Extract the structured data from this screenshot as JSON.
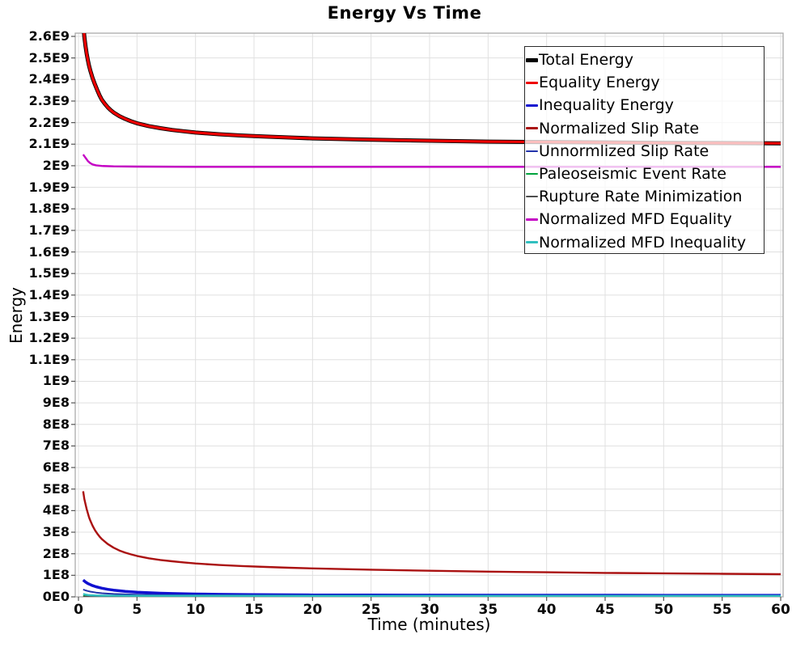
{
  "chart_data": {
    "type": "line",
    "title": "Energy Vs Time",
    "xlabel": "Time (minutes)",
    "ylabel": "Energy",
    "xlim": [
      0,
      60
    ],
    "ylim": [
      0,
      2600000000.0
    ],
    "grid": true,
    "legend_position": "top-right",
    "x_ticks": [
      0,
      5,
      10,
      15,
      20,
      25,
      30,
      35,
      40,
      45,
      50,
      55,
      60
    ],
    "y_ticks": [
      {
        "v": 2600000000.0,
        "label": "2.6E9"
      },
      {
        "v": 2500000000.0,
        "label": "2.5E9"
      },
      {
        "v": 2400000000.0,
        "label": "2.4E9"
      },
      {
        "v": 2300000000.0,
        "label": "2.3E9"
      },
      {
        "v": 2200000000.0,
        "label": "2.2E9"
      },
      {
        "v": 2100000000.0,
        "label": "2.1E9"
      },
      {
        "v": 2000000000.0,
        "label": "2E9"
      },
      {
        "v": 1900000000.0,
        "label": "1.9E9"
      },
      {
        "v": 1800000000.0,
        "label": "1.8E9"
      },
      {
        "v": 1700000000.0,
        "label": "1.7E9"
      },
      {
        "v": 1600000000.0,
        "label": "1.6E9"
      },
      {
        "v": 1500000000.0,
        "label": "1.5E9"
      },
      {
        "v": 1400000000.0,
        "label": "1.4E9"
      },
      {
        "v": 1300000000.0,
        "label": "1.3E9"
      },
      {
        "v": 1200000000.0,
        "label": "1.2E9"
      },
      {
        "v": 1100000000.0,
        "label": "1.1E9"
      },
      {
        "v": 1000000000.0,
        "label": "1E9"
      },
      {
        "v": 900000000.0,
        "label": "9E8"
      },
      {
        "v": 800000000.0,
        "label": "8E8"
      },
      {
        "v": 700000000.0,
        "label": "7E8"
      },
      {
        "v": 600000000.0,
        "label": "6E8"
      },
      {
        "v": 500000000.0,
        "label": "5E8"
      },
      {
        "v": 400000000.0,
        "label": "4E8"
      },
      {
        "v": 300000000.0,
        "label": "3E8"
      },
      {
        "v": 200000000.0,
        "label": "2E8"
      },
      {
        "v": 100000000.0,
        "label": "1E8"
      },
      {
        "v": 0,
        "label": "0E0"
      }
    ],
    "colors": {
      "grid": "#E0E0E0",
      "plot_border": "#ABABAB",
      "tick": "#555555",
      "legend_border": "#2A2A2A"
    },
    "series": [
      {
        "name": "Total Energy",
        "color": "#000000",
        "width": 5,
        "points": [
          [
            0.4,
            2670000000.0
          ],
          [
            0.5,
            2600000000.0
          ],
          [
            0.6,
            2555000000.0
          ],
          [
            0.7,
            2520000000.0
          ],
          [
            0.8,
            2490000000.0
          ],
          [
            0.9,
            2465000000.0
          ],
          [
            1.0,
            2443000000.0
          ],
          [
            1.2,
            2407000000.0
          ],
          [
            1.4,
            2378000000.0
          ],
          [
            1.6,
            2352000000.0
          ],
          [
            1.8,
            2327000000.0
          ],
          [
            2.0,
            2306000000.0
          ],
          [
            2.25,
            2287000000.0
          ],
          [
            2.5,
            2271000000.0
          ],
          [
            2.75,
            2258000000.0
          ],
          [
            3.0,
            2247000000.0
          ],
          [
            3.5,
            2230000000.0
          ],
          [
            4.0,
            2217000000.0
          ],
          [
            4.5,
            2206000000.0
          ],
          [
            5.0,
            2197000000.0
          ],
          [
            6,
            2184000000.0
          ],
          [
            7,
            2174000000.0
          ],
          [
            8,
            2166000000.0
          ],
          [
            9,
            2160000000.0
          ],
          [
            10,
            2154000000.0
          ],
          [
            12,
            2146000000.0
          ],
          [
            14,
            2140000000.0
          ],
          [
            16,
            2135000000.0
          ],
          [
            18,
            2131000000.0
          ],
          [
            20,
            2127000000.0
          ],
          [
            25,
            2121000000.0
          ],
          [
            30,
            2116000000.0
          ],
          [
            35,
            2112000000.0
          ],
          [
            40,
            2110000000.0
          ],
          [
            45,
            2108000000.0
          ],
          [
            50,
            2106000000.0
          ],
          [
            55,
            2105000000.0
          ],
          [
            60,
            2104000000.0
          ]
        ]
      },
      {
        "name": "Equality Energy",
        "color": "#EE0000",
        "width": 3.2,
        "points": [
          [
            0.4,
            2670000000.0
          ],
          [
            0.5,
            2600000000.0
          ],
          [
            0.6,
            2555000000.0
          ],
          [
            0.7,
            2520000000.0
          ],
          [
            0.8,
            2490000000.0
          ],
          [
            0.9,
            2465000000.0
          ],
          [
            1.0,
            2443000000.0
          ],
          [
            1.2,
            2407000000.0
          ],
          [
            1.4,
            2378000000.0
          ],
          [
            1.6,
            2352000000.0
          ],
          [
            1.8,
            2327000000.0
          ],
          [
            2.0,
            2306000000.0
          ],
          [
            2.25,
            2287000000.0
          ],
          [
            2.5,
            2271000000.0
          ],
          [
            2.75,
            2258000000.0
          ],
          [
            3.0,
            2247000000.0
          ],
          [
            3.5,
            2230000000.0
          ],
          [
            4.0,
            2217000000.0
          ],
          [
            4.5,
            2206000000.0
          ],
          [
            5.0,
            2197000000.0
          ],
          [
            6,
            2184000000.0
          ],
          [
            7,
            2174000000.0
          ],
          [
            8,
            2166000000.0
          ],
          [
            9,
            2160000000.0
          ],
          [
            10,
            2154000000.0
          ],
          [
            12,
            2146000000.0
          ],
          [
            14,
            2140000000.0
          ],
          [
            16,
            2135000000.0
          ],
          [
            18,
            2131000000.0
          ],
          [
            20,
            2127000000.0
          ],
          [
            25,
            2121000000.0
          ],
          [
            30,
            2116000000.0
          ],
          [
            35,
            2112000000.0
          ],
          [
            40,
            2110000000.0
          ],
          [
            45,
            2108000000.0
          ],
          [
            50,
            2106000000.0
          ],
          [
            55,
            2105000000.0
          ],
          [
            60,
            2104000000.0
          ]
        ]
      },
      {
        "name": "Inequality Energy",
        "color": "#1010D0",
        "width": 3.5,
        "points": [
          [
            0.4,
            78000000.0
          ],
          [
            0.6,
            69000000.0
          ],
          [
            0.8,
            62000000.0
          ],
          [
            1.0,
            57000000.0
          ],
          [
            1.2,
            52000000.0
          ],
          [
            1.5,
            47000000.0
          ],
          [
            2,
            40000000.0
          ],
          [
            2.5,
            35000000.0
          ],
          [
            3,
            31000000.0
          ],
          [
            4,
            25000000.0
          ],
          [
            5,
            21500000.0
          ],
          [
            6,
            19000000.0
          ],
          [
            7,
            17000000.0
          ],
          [
            8,
            15500000.0
          ],
          [
            10,
            13000000.0
          ],
          [
            12,
            11500000.0
          ],
          [
            15,
            10000000.0
          ],
          [
            20,
            8800000.0
          ],
          [
            25,
            8200000.0
          ],
          [
            30,
            7800000.0
          ],
          [
            40,
            7400000.0
          ],
          [
            50,
            7200000.0
          ],
          [
            60,
            7000000.0
          ]
        ]
      },
      {
        "name": "Normalized Slip Rate",
        "color": "#AA1111",
        "width": 2.4,
        "points": [
          [
            0.4,
            490000000.0
          ],
          [
            0.5,
            455000000.0
          ],
          [
            0.6,
            430000000.0
          ],
          [
            0.7,
            408000000.0
          ],
          [
            0.8,
            388000000.0
          ],
          [
            0.9,
            370000000.0
          ],
          [
            1.0,
            355000000.0
          ],
          [
            1.2,
            330000000.0
          ],
          [
            1.4,
            310000000.0
          ],
          [
            1.6,
            294000000.0
          ],
          [
            1.8,
            280000000.0
          ],
          [
            2.0,
            268000000.0
          ],
          [
            2.5,
            245000000.0
          ],
          [
            3.0,
            228000000.0
          ],
          [
            3.5,
            215000000.0
          ],
          [
            4.0,
            205000000.0
          ],
          [
            4.5,
            197000000.0
          ],
          [
            5.0,
            190000000.0
          ],
          [
            6,
            179000000.0
          ],
          [
            7,
            171000000.0
          ],
          [
            8,
            165000000.0
          ],
          [
            9,
            160000000.0
          ],
          [
            10,
            155000000.0
          ],
          [
            12,
            148000000.0
          ],
          [
            14,
            143000000.0
          ],
          [
            16,
            139000000.0
          ],
          [
            18,
            135000000.0
          ],
          [
            20,
            132000000.0
          ],
          [
            25,
            126000000.0
          ],
          [
            30,
            121000000.0
          ],
          [
            35,
            117000000.0
          ],
          [
            40,
            114000000.0
          ],
          [
            45,
            111000000.0
          ],
          [
            50,
            109000000.0
          ],
          [
            55,
            107000000.0
          ],
          [
            60,
            105000000.0
          ]
        ]
      },
      {
        "name": "Unnormlized Slip Rate",
        "color": "#2233AA",
        "width": 2,
        "points": [
          [
            0.4,
            34000000.0
          ],
          [
            0.6,
            30000000.0
          ],
          [
            0.8,
            27000000.0
          ],
          [
            1,
            24500000.0
          ],
          [
            1.5,
            20000000.0
          ],
          [
            2,
            17000000.0
          ],
          [
            3,
            13500000.0
          ],
          [
            4,
            11500000.0
          ],
          [
            5,
            10000000.0
          ],
          [
            7,
            8500000.0
          ],
          [
            10,
            7400000.0
          ],
          [
            15,
            6600000.0
          ],
          [
            20,
            6200000.0
          ],
          [
            30,
            5800000.0
          ],
          [
            40,
            5600000.0
          ],
          [
            50,
            5500000.0
          ],
          [
            60,
            5400000.0
          ]
        ]
      },
      {
        "name": "Paleoseismic Event Rate",
        "color": "#00A33C",
        "width": 2.4,
        "points": [
          [
            0.4,
            3200000.0
          ],
          [
            1,
            3000000.0
          ],
          [
            2,
            2800000.0
          ],
          [
            5,
            2700000.0
          ],
          [
            10,
            2600000.0
          ],
          [
            20,
            2500000.0
          ],
          [
            40,
            2500000.0
          ],
          [
            60,
            2500000.0
          ]
        ]
      },
      {
        "name": "Rupture Rate Minimization",
        "color": "#4D4D4D",
        "width": 2,
        "points": [
          [
            0.4,
            900000.0
          ],
          [
            5,
            800000.0
          ],
          [
            20,
            700000.0
          ],
          [
            60,
            700000.0
          ]
        ]
      },
      {
        "name": "Normalized MFD Equality",
        "color": "#C400C4",
        "width": 2.4,
        "points": [
          [
            0.4,
            2052000000.0
          ],
          [
            0.6,
            2037000000.0
          ],
          [
            0.8,
            2022000000.0
          ],
          [
            1.0,
            2012000000.0
          ],
          [
            1.2,
            2006000000.0
          ],
          [
            1.5,
            2002000000.0
          ],
          [
            2,
            1999000000.0
          ],
          [
            3,
            1997000000.0
          ],
          [
            5,
            1996000000.0
          ],
          [
            10,
            1995000000.0
          ],
          [
            20,
            1995000000.0
          ],
          [
            30,
            1995000000.0
          ],
          [
            40,
            1995000000.0
          ],
          [
            50,
            1995000000.0
          ],
          [
            60,
            1995000000.0
          ]
        ]
      },
      {
        "name": "Normalized MFD Inequality",
        "color": "#30BFBF",
        "width": 2.4,
        "points": [
          [
            0.4,
            13500000.0
          ],
          [
            0.6,
            10500000.0
          ],
          [
            0.8,
            8500000.0
          ],
          [
            1,
            7500000.0
          ],
          [
            1.5,
            6300000.0
          ],
          [
            2,
            5700000.0
          ],
          [
            3,
            5200000.0
          ],
          [
            5,
            4900000.0
          ],
          [
            10,
            4700000.0
          ],
          [
            20,
            4600000.0
          ],
          [
            40,
            4500000.0
          ],
          [
            60,
            4500000.0
          ]
        ]
      }
    ]
  }
}
